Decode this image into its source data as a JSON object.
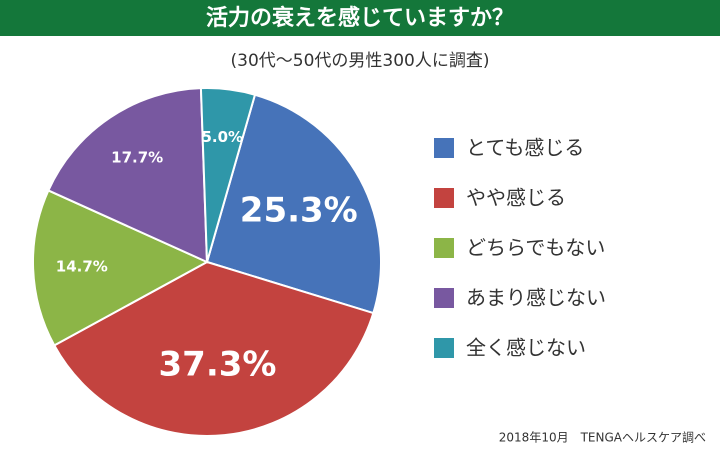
{
  "chart_data": {
    "type": "pie",
    "title": "活力の衰えを感じていますか？",
    "subtitle": "(30代〜50代の男性300人に調査)",
    "source": "2018年10月　TENGAヘルスケア調べ",
    "categories": [
      "とても感じる",
      "やや感じる",
      "どちらでもない",
      "あまり感じない",
      "全く感じない"
    ],
    "values": [
      25.3,
      37.3,
      14.7,
      17.7,
      5.0
    ],
    "value_labels": [
      "25.3%",
      "37.3%",
      "14.7%",
      "17.7%",
      "5.0%"
    ],
    "colors": [
      "#4673b9",
      "#c3433f",
      "#8cb547",
      "#7858a0",
      "#2f97a9"
    ],
    "legend": "right"
  }
}
